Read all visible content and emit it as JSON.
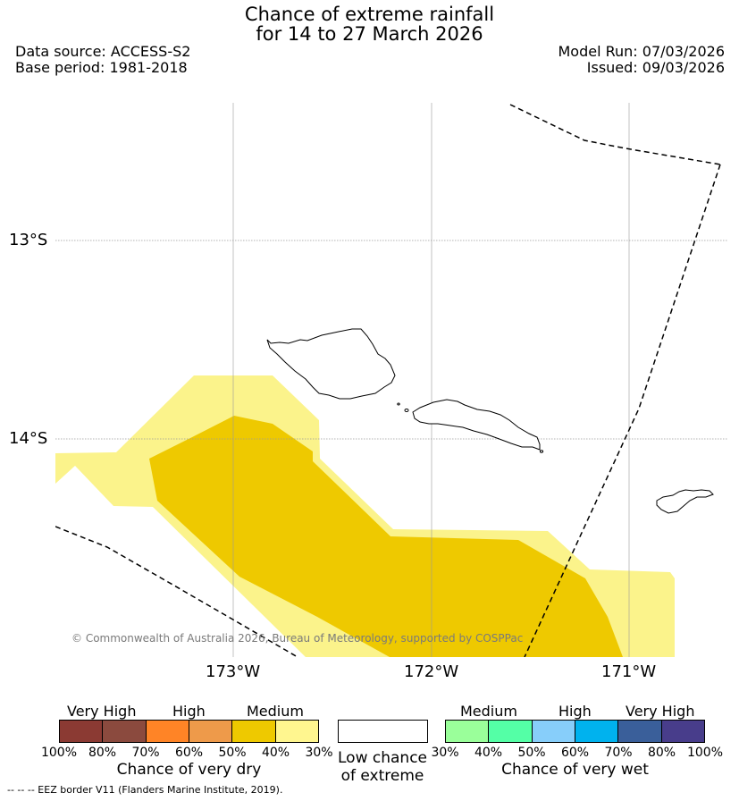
{
  "header": {
    "title_line1": "Chance of extreme rainfall",
    "title_line2": "for 14 to 27 March 2026",
    "data_source": "Data source: ACCESS-S2",
    "base_period": "Base period: 1981-2018",
    "model_run": "Model Run: 07/03/2026",
    "issued": "Issued: 09/03/2026"
  },
  "map": {
    "lat_labels": [
      "13°S",
      "14°S"
    ],
    "lon_labels": [
      "173°W",
      "172°W",
      "171°W"
    ],
    "copyright": "© Commonwealth of Australia 2026, Bureau of Meteorology, supported by COSPPac",
    "colors": {
      "medium_dry": "#eec900",
      "low_medium_dry": "#fbf38b",
      "eez_line": "#000000"
    }
  },
  "legend": {
    "dry": {
      "groups": [
        "Very High",
        "High",
        "Medium"
      ],
      "colors": [
        "#8b3a33",
        "#8b4a3e",
        "#ff8426",
        "#ee9a4a",
        "#eec900",
        "#fff68f"
      ],
      "ticks": [
        "100%",
        "80%",
        "70%",
        "60%",
        "50%",
        "40%",
        "30%"
      ],
      "caption": "Chance of very dry"
    },
    "low": {
      "caption_line1": "Low chance",
      "caption_line2": "of extreme",
      "color": "#ffffff"
    },
    "wet": {
      "groups": [
        "Medium",
        "High",
        "Very High"
      ],
      "colors": [
        "#9aff9a",
        "#54ffa6",
        "#87cefa",
        "#00b2ee",
        "#3a5f9a",
        "#483d8b"
      ],
      "ticks": [
        "30%",
        "40%",
        "50%",
        "60%",
        "70%",
        "80%",
        "100%"
      ],
      "caption": "Chance of very wet"
    }
  },
  "footer": {
    "eez_note": "--  --  -- EEZ border V11 (Flanders Marine Institute, 2019)."
  }
}
